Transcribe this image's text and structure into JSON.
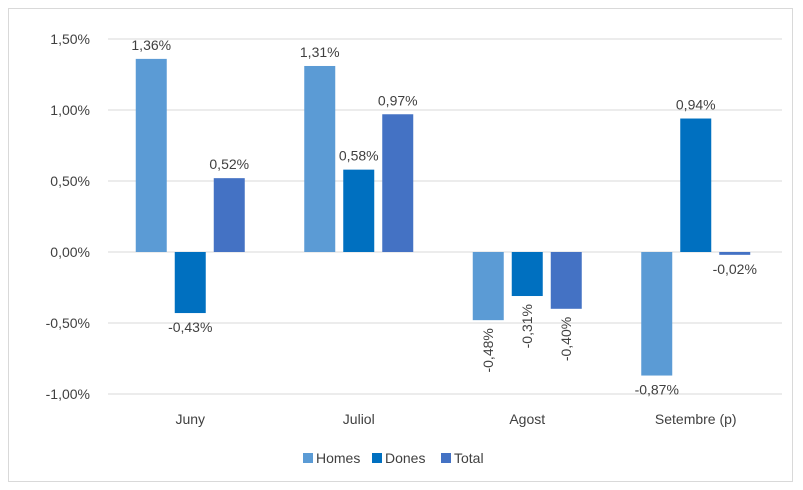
{
  "chart_data": {
    "type": "bar",
    "categories": [
      "Juny",
      "Juliol",
      "Agost",
      "Setembre (p)"
    ],
    "series": [
      {
        "name": "Homes",
        "values": [
          1.36,
          1.31,
          -0.48,
          -0.87
        ],
        "labels": [
          "1,36%",
          "1,31%",
          "-0,48%",
          "-0,87%"
        ],
        "color": "#5b9bd5"
      },
      {
        "name": "Dones",
        "values": [
          -0.43,
          0.58,
          -0.31,
          0.94
        ],
        "labels": [
          "-0,43%",
          "0,58%",
          "-0,31%",
          "0,94%"
        ],
        "color": "#0070c0"
      },
      {
        "name": "Total",
        "values": [
          0.52,
          0.97,
          -0.4,
          -0.02
        ],
        "labels": [
          "0,52%",
          "0,97%",
          "-0,40%",
          "-0,02%"
        ],
        "color": "#4472c4"
      }
    ],
    "ylim": [
      -1.0,
      1.5
    ],
    "yticks": [
      {
        "value": 1.5,
        "label": "1,50%"
      },
      {
        "value": 1.0,
        "label": "1,00%"
      },
      {
        "value": 0.5,
        "label": "0,50%"
      },
      {
        "value": 0.0,
        "label": "0,00%"
      },
      {
        "value": -0.5,
        "label": "-0,50%"
      },
      {
        "value": -1.0,
        "label": "-1,00%"
      }
    ],
    "grid": true,
    "legend": "bottom",
    "title": "",
    "xlabel": "",
    "ylabel": ""
  }
}
